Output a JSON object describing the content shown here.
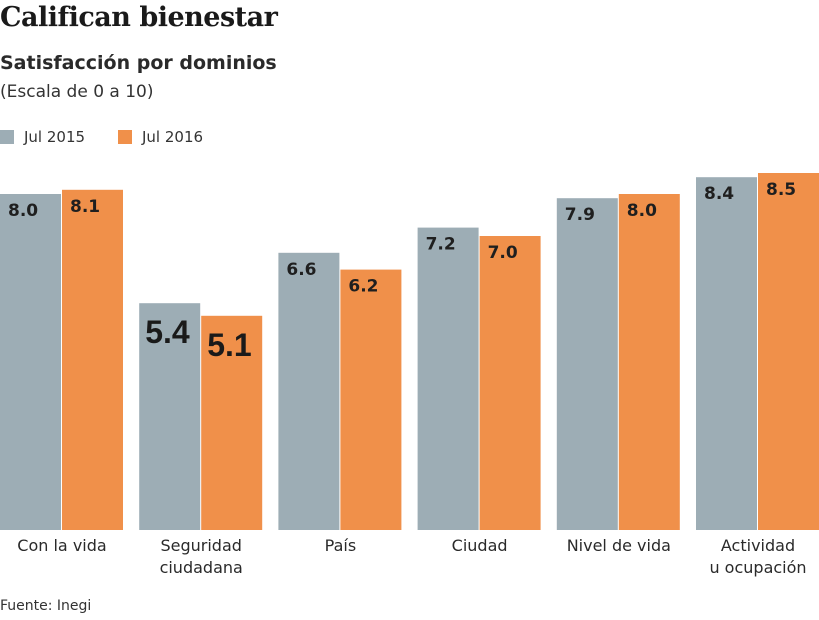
{
  "chart_data": {
    "type": "bar",
    "title": "Califican bienestar",
    "subtitle": "Satisfacción por dominios",
    "note": "(Escala de 0 a 10)",
    "source": "Fuente: Inegi",
    "categories": [
      [
        "Con la vida"
      ],
      [
        "Seguridad",
        "ciudadana"
      ],
      [
        "País"
      ],
      [
        "Ciudad"
      ],
      [
        "Nivel de vida"
      ],
      [
        "Actividad",
        "u ocupación"
      ]
    ],
    "series": [
      {
        "name": "Jul 2015",
        "color": "#9dadb5",
        "values": [
          8.0,
          5.4,
          6.6,
          7.2,
          7.9,
          8.4
        ]
      },
      {
        "name": "Jul 2016",
        "color": "#f0904a",
        "values": [
          8.1,
          5.1,
          6.2,
          7.0,
          8.0,
          8.5
        ]
      }
    ],
    "value_labels": [
      [
        "8.0",
        "5.4",
        "6.6",
        "7.2",
        "7.9",
        "8.4"
      ],
      [
        "8.1",
        "5.1",
        "6.2",
        "7.0",
        "8.0",
        "8.5"
      ]
    ],
    "ylim": [
      0,
      10
    ],
    "grid": false,
    "legend": "top-left"
  }
}
